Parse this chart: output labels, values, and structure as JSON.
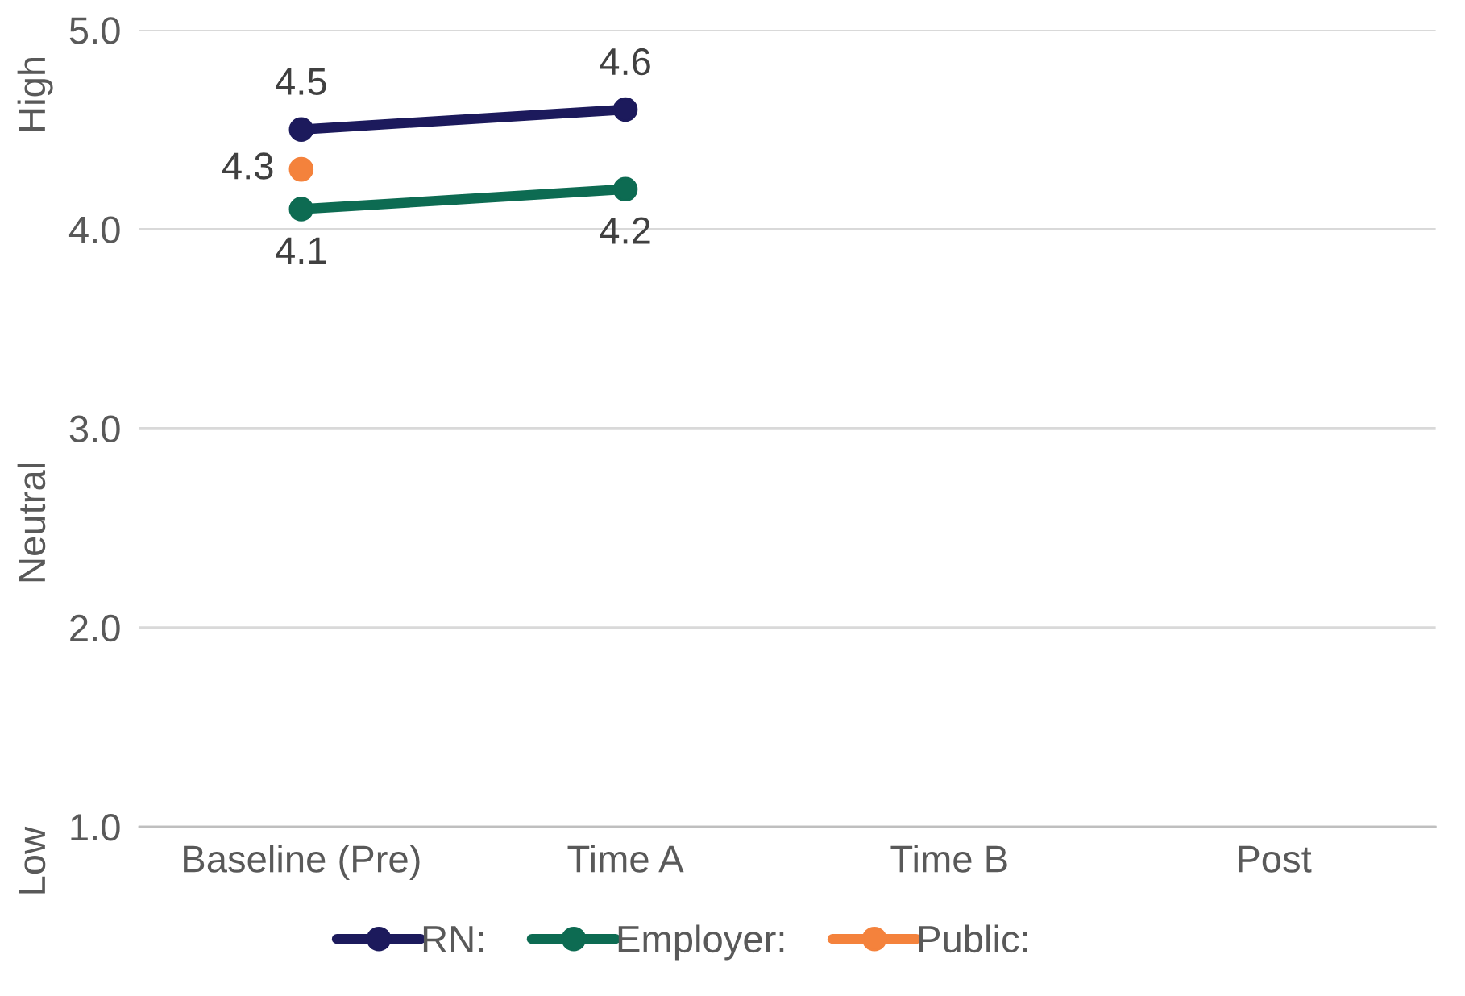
{
  "chart_data": {
    "type": "line",
    "categories": [
      "Baseline (Pre)",
      "Time A",
      "Time B",
      "Post"
    ],
    "series": [
      {
        "name": "RN:",
        "color": "#1c1a5c",
        "values": [
          4.5,
          4.6,
          null,
          null
        ]
      },
      {
        "name": "Employer:",
        "color": "#0d6b52",
        "values": [
          4.1,
          4.2,
          null,
          null
        ]
      },
      {
        "name": "Public:",
        "color": "#f4823c",
        "values": [
          4.3,
          null,
          null,
          null
        ]
      }
    ],
    "ylim": [
      1.0,
      5.0
    ],
    "yticks": [
      {
        "value": 1.0,
        "label": "1.0"
      },
      {
        "value": 2.0,
        "label": "2.0"
      },
      {
        "value": 3.0,
        "label": "3.0"
      },
      {
        "value": 4.0,
        "label": "4.0"
      },
      {
        "value": 5.0,
        "label": "5.0"
      }
    ],
    "annotations": [
      "High",
      "Neutral",
      "Low"
    ],
    "data_labels": true,
    "grid": "y",
    "legend": "bottom",
    "marker": "circle",
    "line_style": "solid"
  }
}
